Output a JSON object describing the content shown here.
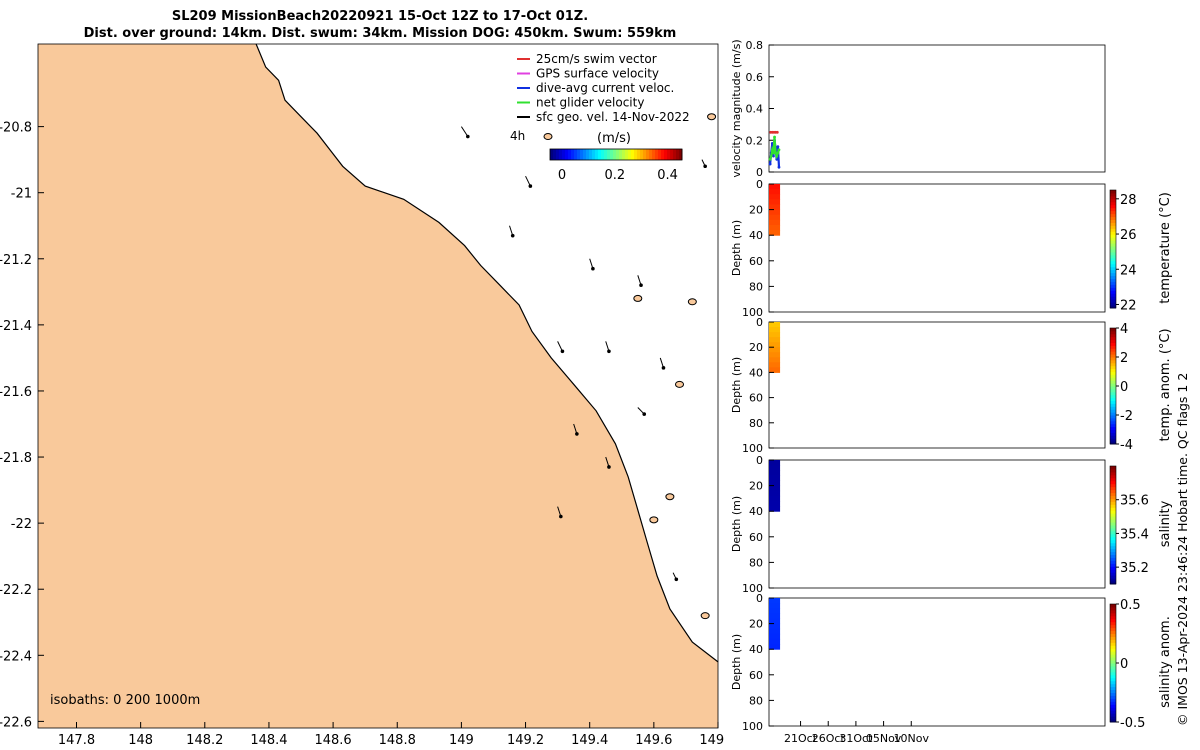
{
  "header": {
    "line1": "SL209 MissionBeach20220921 15-Oct 12Z to 17-Oct 01Z.",
    "line2": "Dist. over ground: 14km. Dist. swum: 34km. Mission DOG: 450km. Swum: 559km"
  },
  "map": {
    "legend": [
      {
        "label": "25cm/s swim vector",
        "color": "#e03030"
      },
      {
        "label": "GPS surface velocity",
        "color": "#e040e0"
      },
      {
        "label": "dive-avg current veloc.",
        "color": "#1030e0"
      },
      {
        "label": "net glider velocity",
        "color": "#30e030"
      },
      {
        "label": "sfc geo. vel. 14-Nov-2022",
        "color": "#000000"
      }
    ],
    "time_label": "4h",
    "colorbar": {
      "title": "(m/s)",
      "ticks": [
        "0",
        "0.2",
        "0.4"
      ],
      "min": 0,
      "max": 0.5
    },
    "isobaths_label": "isobaths: 0   200  1000m",
    "land_color": "#f9c99b"
  },
  "chart_data": [
    {
      "type": "map",
      "title": "SL209 MissionBeach20220921 15-Oct 12Z to 17-Oct 01Z.",
      "xlim": [
        147.68,
        149.8
      ],
      "ylim": [
        -22.62,
        -20.55
      ],
      "x_ticks": [
        "147.8",
        "148",
        "148.2",
        "148.4",
        "148.6",
        "148.8",
        "149",
        "149.2",
        "149.4",
        "149.6",
        "149.8"
      ],
      "y_ticks": [
        "-20.8",
        "-21",
        "-21.2",
        "-21.4",
        "-21.6",
        "-21.8",
        "-22",
        "-22.2",
        "-22.4",
        "-22.6"
      ],
      "x_tick_values": [
        147.8,
        148,
        148.2,
        148.4,
        148.6,
        148.8,
        149,
        149.2,
        149.4,
        149.6,
        149.8
      ],
      "y_tick_values": [
        -20.8,
        -21,
        -21.2,
        -21.4,
        -21.6,
        -21.8,
        -22,
        -22.2,
        -22.4,
        -22.6
      ],
      "coastline": [
        [
          148.36,
          -20.55
        ],
        [
          148.39,
          -20.62
        ],
        [
          148.43,
          -20.66
        ],
        [
          148.45,
          -20.72
        ],
        [
          148.5,
          -20.77
        ],
        [
          148.55,
          -20.82
        ],
        [
          148.59,
          -20.87
        ],
        [
          148.63,
          -20.92
        ],
        [
          148.7,
          -20.98
        ],
        [
          148.82,
          -21.02
        ],
        [
          148.93,
          -21.09
        ],
        [
          149.01,
          -21.16
        ],
        [
          149.06,
          -21.22
        ],
        [
          149.12,
          -21.28
        ],
        [
          149.18,
          -21.34
        ],
        [
          149.22,
          -21.42
        ],
        [
          149.28,
          -21.5
        ],
        [
          149.35,
          -21.58
        ],
        [
          149.42,
          -21.66
        ],
        [
          149.48,
          -21.76
        ],
        [
          149.52,
          -21.86
        ],
        [
          149.55,
          -21.96
        ],
        [
          149.58,
          -22.06
        ],
        [
          149.61,
          -22.16
        ],
        [
          149.65,
          -22.26
        ],
        [
          149.72,
          -22.36
        ],
        [
          149.8,
          -22.42
        ]
      ],
      "islands": [
        [
          149.27,
          -20.83
        ],
        [
          149.35,
          -20.89
        ],
        [
          149.55,
          -21.32
        ],
        [
          149.68,
          -21.58
        ],
        [
          149.6,
          -21.99
        ],
        [
          149.65,
          -21.92
        ],
        [
          149.78,
          -20.77
        ],
        [
          149.72,
          -21.33
        ],
        [
          149.76,
          -22.28
        ]
      ],
      "geo_vectors": [
        [
          149.0,
          -20.8,
          0.02,
          -0.03
        ],
        [
          149.2,
          -20.95,
          0.015,
          -0.03
        ],
        [
          149.4,
          -21.2,
          0.01,
          -0.03
        ],
        [
          149.55,
          -21.25,
          0.01,
          -0.03
        ],
        [
          149.3,
          -21.45,
          0.015,
          -0.03
        ],
        [
          149.45,
          -21.45,
          0.01,
          -0.03
        ],
        [
          149.55,
          -21.65,
          0.02,
          -0.02
        ],
        [
          149.45,
          -21.8,
          0.01,
          -0.03
        ],
        [
          149.35,
          -21.7,
          0.01,
          -0.03
        ],
        [
          149.75,
          -20.9,
          0.01,
          -0.02
        ],
        [
          149.15,
          -21.1,
          0.01,
          -0.03
        ],
        [
          149.62,
          -21.5,
          0.01,
          -0.03
        ],
        [
          149.3,
          -21.95,
          0.01,
          -0.03
        ],
        [
          149.66,
          -22.15,
          0.01,
          -0.02
        ]
      ]
    },
    {
      "type": "line",
      "ylabel": "velocity magnitude (m/s)",
      "ylim": [
        0,
        0.8
      ],
      "y_ticks": [
        "0",
        "0.2",
        "0.4",
        "0.6",
        "0.8"
      ],
      "y_tick_values": [
        0,
        0.2,
        0.4,
        0.6,
        0.8
      ],
      "xlim": [
        15.3,
        76
      ],
      "series": [
        {
          "name": "dive-avg current veloc.",
          "color": "#1030e0",
          "x": [
            15.5,
            15.7,
            15.9,
            16.1,
            16.3,
            16.5,
            16.7,
            16.9,
            17.1
          ],
          "values": [
            0.05,
            0.12,
            0.18,
            0.1,
            0.2,
            0.15,
            0.08,
            0.16,
            0.03
          ]
        },
        {
          "name": "net glider velocity",
          "color": "#30e030",
          "x": [
            15.5,
            15.7,
            15.9,
            16.1,
            16.3,
            16.5,
            16.7,
            16.9,
            17.1
          ],
          "values": [
            0.08,
            0.1,
            0.14,
            0.12,
            0.22,
            0.12,
            0.1,
            0.12,
            0.14
          ]
        },
        {
          "name": "25cm/s swim vector",
          "color": "#e03030",
          "x": [
            15.6,
            15.9,
            16.2,
            16.5,
            16.8
          ],
          "values": [
            0.25,
            0.25,
            0.25,
            0.25,
            0.25
          ]
        }
      ]
    },
    {
      "type": "heatmap",
      "ylabel": "Depth (m)",
      "clabel": "temperature (°C)",
      "ylim": [
        0,
        100
      ],
      "y_ticks": [
        "0",
        "20",
        "40",
        "60",
        "80",
        "100"
      ],
      "y_tick_values": [
        0,
        20,
        40,
        60,
        80,
        100
      ],
      "clim": [
        21.8,
        28.5
      ],
      "c_ticks": [
        "22",
        "24",
        "26",
        "28"
      ],
      "c_tick_values": [
        22,
        24,
        26,
        28
      ],
      "data_x": [
        15.3,
        17.3
      ],
      "data_depth": [
        0,
        40
      ],
      "value_top": 27.6,
      "value_bottom": 27.0
    },
    {
      "type": "heatmap",
      "ylabel": "Depth (m)",
      "clabel": "temp. anom. (°C)",
      "ylim": [
        0,
        100
      ],
      "y_ticks": [
        "0",
        "20",
        "40",
        "60",
        "80",
        "100"
      ],
      "y_tick_values": [
        0,
        20,
        40,
        60,
        80,
        100
      ],
      "clim": [
        -4,
        4
      ],
      "c_ticks": [
        "-4",
        "-2",
        "0",
        "2",
        "4"
      ],
      "c_tick_values": [
        -4,
        -2,
        0,
        2,
        4
      ],
      "data_x": [
        15.3,
        17.3
      ],
      "data_depth": [
        0,
        40
      ],
      "value_top": 1.4,
      "value_bottom": 2.2
    },
    {
      "type": "heatmap",
      "ylabel": "Depth (m)",
      "clabel": "salinity",
      "ylim": [
        0,
        100
      ],
      "y_ticks": [
        "0",
        "20",
        "40",
        "60",
        "80",
        "100"
      ],
      "y_tick_values": [
        0,
        20,
        40,
        60,
        80,
        100
      ],
      "clim": [
        35.1,
        35.8
      ],
      "c_ticks": [
        "35.2",
        "35.4",
        "35.6"
      ],
      "c_tick_values": [
        35.2,
        35.4,
        35.6
      ],
      "data_x": [
        15.3,
        17.3
      ],
      "data_depth": [
        0,
        40
      ],
      "value_top": 35.12,
      "value_bottom": 35.13
    },
    {
      "type": "heatmap",
      "ylabel": "Depth (m)",
      "clabel": "salinity anom.",
      "ylim": [
        0,
        100
      ],
      "y_ticks": [
        "0",
        "20",
        "40",
        "60",
        "80",
        "100"
      ],
      "y_tick_values": [
        0,
        20,
        40,
        60,
        80,
        100
      ],
      "clim": [
        -0.5,
        0.5
      ],
      "c_ticks": [
        "-0.5",
        "0",
        "0.5"
      ],
      "c_tick_values": [
        -0.5,
        0,
        0.5
      ],
      "data_x": [
        15.3,
        17.3
      ],
      "data_depth": [
        0,
        40
      ],
      "value_top": -0.32,
      "value_bottom": -0.34,
      "x_ticks": [
        "21Oct",
        "26Oct",
        "31Oct",
        "05Nov",
        "10Nov"
      ],
      "x_tick_values": [
        21,
        26,
        31,
        36,
        41
      ]
    }
  ],
  "footer": {
    "credit": "© IMOS 13-Apr-2024 23:46:24 Hobart time. QC flags 1  2"
  }
}
